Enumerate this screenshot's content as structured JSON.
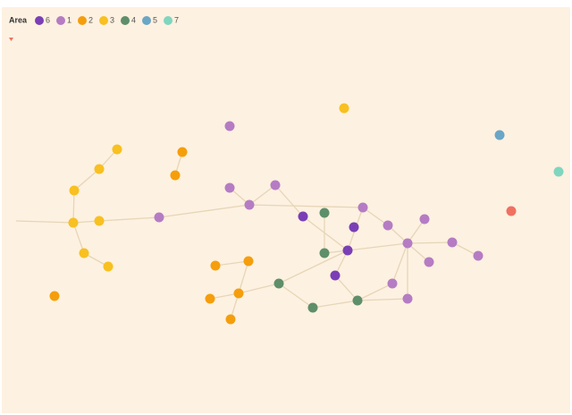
{
  "legend": {
    "title": "Area",
    "items": [
      {
        "label": "6",
        "color": "#7b3fb5"
      },
      {
        "label": "1",
        "color": "#b57cc4"
      },
      {
        "label": "2",
        "color": "#f59e0b"
      },
      {
        "label": "3",
        "color": "#f8c020"
      },
      {
        "label": "4",
        "color": "#5e8f6a"
      },
      {
        "label": "5",
        "color": "#6aa6c6"
      },
      {
        "label": "7",
        "color": "#7fd6bf"
      }
    ]
  }
}
